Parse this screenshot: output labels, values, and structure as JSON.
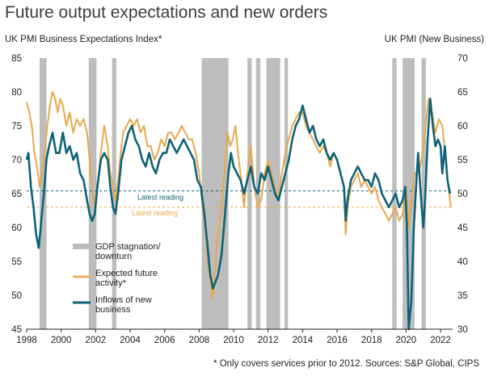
{
  "chart_data": {
    "type": "line",
    "title": "Future output expectations and new orders",
    "left_axis": {
      "label": "UK PMI Business Expectations Index*",
      "range": [
        45,
        85
      ],
      "ticks": [
        45,
        50,
        55,
        60,
        65,
        70,
        75,
        80,
        85
      ]
    },
    "right_axis": {
      "label": "UK PMI (New Business)",
      "range": [
        30,
        70
      ],
      "ticks": [
        30,
        35,
        40,
        45,
        50,
        55,
        60,
        65,
        70
      ]
    },
    "x_axis": {
      "range": [
        1998,
        2022.7
      ],
      "ticks": [
        1998,
        2000,
        2002,
        2004,
        2006,
        2008,
        2010,
        2012,
        2014,
        2016,
        2018,
        2020,
        2022
      ]
    },
    "shaded_periods": {
      "label": "GDP stagnation/ downturn",
      "periods": [
        [
          1998.75,
          1999.15
        ],
        [
          2001.6,
          2002.05
        ],
        [
          2002.95,
          2003.2
        ],
        [
          2008.15,
          2009.7
        ],
        [
          2010.8,
          2011.05
        ],
        [
          2011.3,
          2011.55
        ],
        [
          2011.9,
          2012.7
        ],
        [
          2012.95,
          2013.15
        ],
        [
          2019.2,
          2019.45
        ],
        [
          2019.8,
          2020.5
        ],
        [
          2020.9,
          2021.15
        ]
      ]
    },
    "series": [
      {
        "name": "Expected future activity*",
        "axis": "left",
        "color": "#E8A84C",
        "points": [
          [
            1998.0,
            78.5
          ],
          [
            1998.15,
            77
          ],
          [
            1998.3,
            75
          ],
          [
            1998.45,
            71
          ],
          [
            1998.6,
            69
          ],
          [
            1998.75,
            66
          ],
          [
            1998.9,
            68
          ],
          [
            1999.05,
            71
          ],
          [
            1999.2,
            75
          ],
          [
            1999.35,
            78
          ],
          [
            1999.5,
            80
          ],
          [
            1999.65,
            79
          ],
          [
            1999.8,
            77
          ],
          [
            1999.95,
            79
          ],
          [
            2000.1,
            78
          ],
          [
            2000.3,
            75
          ],
          [
            2000.5,
            77
          ],
          [
            2000.7,
            74
          ],
          [
            2000.9,
            76
          ],
          [
            2001.1,
            75
          ],
          [
            2001.3,
            76
          ],
          [
            2001.5,
            74
          ],
          [
            2001.65,
            70
          ],
          [
            2001.8,
            66
          ],
          [
            2001.95,
            63
          ],
          [
            2002.1,
            66
          ],
          [
            2002.3,
            71
          ],
          [
            2002.5,
            75
          ],
          [
            2002.7,
            72
          ],
          [
            2002.85,
            68
          ],
          [
            2003.0,
            66
          ],
          [
            2003.15,
            64
          ],
          [
            2003.3,
            67
          ],
          [
            2003.45,
            71
          ],
          [
            2003.6,
            74
          ],
          [
            2003.8,
            75
          ],
          [
            2004.0,
            76
          ],
          [
            2004.2,
            75
          ],
          [
            2004.4,
            76
          ],
          [
            2004.6,
            74
          ],
          [
            2004.8,
            75
          ],
          [
            2005.0,
            72
          ],
          [
            2005.2,
            72
          ],
          [
            2005.4,
            70
          ],
          [
            2005.6,
            71
          ],
          [
            2005.8,
            73
          ],
          [
            2006.0,
            72
          ],
          [
            2006.2,
            74
          ],
          [
            2006.4,
            74
          ],
          [
            2006.6,
            73
          ],
          [
            2006.8,
            74
          ],
          [
            2007.0,
            75
          ],
          [
            2007.2,
            74
          ],
          [
            2007.4,
            73
          ],
          [
            2007.6,
            73
          ],
          [
            2007.8,
            71
          ],
          [
            2008.0,
            68
          ],
          [
            2008.2,
            63
          ],
          [
            2008.35,
            60
          ],
          [
            2008.5,
            55
          ],
          [
            2008.65,
            52
          ],
          [
            2008.8,
            49.5
          ],
          [
            2008.95,
            55
          ],
          [
            2009.1,
            59
          ],
          [
            2009.3,
            63
          ],
          [
            2009.5,
            69
          ],
          [
            2009.65,
            74
          ],
          [
            2009.8,
            72
          ],
          [
            2009.95,
            73
          ],
          [
            2010.1,
            75
          ],
          [
            2010.3,
            70
          ],
          [
            2010.45,
            67
          ],
          [
            2010.6,
            63
          ],
          [
            2010.8,
            68
          ],
          [
            2011.0,
            72
          ],
          [
            2011.2,
            66
          ],
          [
            2011.4,
            63
          ],
          [
            2011.6,
            64
          ],
          [
            2011.8,
            68
          ],
          [
            2012.0,
            70
          ],
          [
            2012.2,
            68
          ],
          [
            2012.4,
            66
          ],
          [
            2012.6,
            64
          ],
          [
            2012.8,
            68
          ],
          [
            2013.0,
            71
          ],
          [
            2013.2,
            73
          ],
          [
            2013.4,
            75
          ],
          [
            2013.6,
            76
          ],
          [
            2013.8,
            77
          ],
          [
            2014.0,
            77
          ],
          [
            2014.2,
            75
          ],
          [
            2014.4,
            74
          ],
          [
            2014.6,
            73
          ],
          [
            2014.8,
            72
          ],
          [
            2015.0,
            71
          ],
          [
            2015.2,
            72
          ],
          [
            2015.4,
            71
          ],
          [
            2015.6,
            69
          ],
          [
            2015.8,
            71
          ],
          [
            2016.0,
            70
          ],
          [
            2016.2,
            68
          ],
          [
            2016.4,
            66
          ],
          [
            2016.5,
            59
          ],
          [
            2016.6,
            63
          ],
          [
            2016.8,
            66
          ],
          [
            2017.0,
            67
          ],
          [
            2017.2,
            68
          ],
          [
            2017.4,
            66
          ],
          [
            2017.6,
            67
          ],
          [
            2017.8,
            66
          ],
          [
            2018.0,
            65
          ],
          [
            2018.2,
            66
          ],
          [
            2018.4,
            64
          ],
          [
            2018.6,
            63
          ],
          [
            2018.8,
            62
          ],
          [
            2019.0,
            61
          ],
          [
            2019.2,
            62
          ],
          [
            2019.4,
            63
          ],
          [
            2019.6,
            61
          ],
          [
            2019.8,
            62
          ],
          [
            2020.0,
            66
          ],
          [
            2020.15,
            60
          ],
          [
            2020.3,
            64
          ],
          [
            2020.5,
            68
          ],
          [
            2020.7,
            68
          ],
          [
            2020.9,
            70
          ],
          [
            2021.1,
            74
          ],
          [
            2021.3,
            79
          ],
          [
            2021.5,
            77
          ],
          [
            2021.7,
            74
          ],
          [
            2021.9,
            76
          ],
          [
            2022.1,
            75
          ],
          [
            2022.3,
            70
          ],
          [
            2022.45,
            66
          ],
          [
            2022.6,
            63
          ]
        ]
      },
      {
        "name": "Inflows of new business",
        "axis": "right",
        "color": "#0E6377",
        "points": [
          [
            1998.0,
            55
          ],
          [
            1998.1,
            56
          ],
          [
            1998.25,
            51
          ],
          [
            1998.4,
            48
          ],
          [
            1998.55,
            44
          ],
          [
            1998.7,
            42
          ],
          [
            1998.85,
            46
          ],
          [
            1999.0,
            50
          ],
          [
            1999.15,
            55
          ],
          [
            1999.3,
            57
          ],
          [
            1999.5,
            59
          ],
          [
            1999.7,
            56
          ],
          [
            1999.9,
            56
          ],
          [
            2000.1,
            59
          ],
          [
            2000.3,
            56
          ],
          [
            2000.5,
            57
          ],
          [
            2000.7,
            55
          ],
          [
            2000.9,
            56
          ],
          [
            2001.1,
            53
          ],
          [
            2001.3,
            52
          ],
          [
            2001.5,
            49
          ],
          [
            2001.65,
            47
          ],
          [
            2001.8,
            46
          ],
          [
            2001.95,
            47
          ],
          [
            2002.1,
            51
          ],
          [
            2002.3,
            55
          ],
          [
            2002.5,
            56
          ],
          [
            2002.7,
            55
          ],
          [
            2002.85,
            51
          ],
          [
            2003.0,
            48
          ],
          [
            2003.15,
            47
          ],
          [
            2003.3,
            50
          ],
          [
            2003.5,
            55
          ],
          [
            2003.7,
            57
          ],
          [
            2003.9,
            59
          ],
          [
            2004.1,
            60
          ],
          [
            2004.3,
            58
          ],
          [
            2004.5,
            57
          ],
          [
            2004.7,
            55
          ],
          [
            2004.9,
            54
          ],
          [
            2005.1,
            56
          ],
          [
            2005.3,
            54
          ],
          [
            2005.5,
            53
          ],
          [
            2005.7,
            55
          ],
          [
            2005.9,
            56
          ],
          [
            2006.1,
            56
          ],
          [
            2006.3,
            58
          ],
          [
            2006.5,
            57
          ],
          [
            2006.7,
            56
          ],
          [
            2006.9,
            57
          ],
          [
            2007.1,
            58
          ],
          [
            2007.3,
            57
          ],
          [
            2007.5,
            56
          ],
          [
            2007.7,
            55
          ],
          [
            2007.9,
            52
          ],
          [
            2008.1,
            51
          ],
          [
            2008.3,
            47
          ],
          [
            2008.5,
            42
          ],
          [
            2008.65,
            38
          ],
          [
            2008.8,
            36
          ],
          [
            2008.95,
            37
          ],
          [
            2009.1,
            38
          ],
          [
            2009.3,
            41
          ],
          [
            2009.5,
            47
          ],
          [
            2009.7,
            53
          ],
          [
            2009.85,
            56
          ],
          [
            2010.0,
            54
          ],
          [
            2010.2,
            53
          ],
          [
            2010.4,
            52
          ],
          [
            2010.6,
            50
          ],
          [
            2010.8,
            52
          ],
          [
            2011.0,
            54
          ],
          [
            2011.2,
            51
          ],
          [
            2011.4,
            50
          ],
          [
            2011.6,
            53
          ],
          [
            2011.8,
            52
          ],
          [
            2012.0,
            54
          ],
          [
            2012.2,
            52
          ],
          [
            2012.4,
            50
          ],
          [
            2012.6,
            49
          ],
          [
            2012.8,
            51
          ],
          [
            2013.0,
            53
          ],
          [
            2013.2,
            55
          ],
          [
            2013.4,
            58
          ],
          [
            2013.6,
            60
          ],
          [
            2013.8,
            61
          ],
          [
            2014.0,
            63
          ],
          [
            2014.2,
            61
          ],
          [
            2014.4,
            59
          ],
          [
            2014.6,
            60
          ],
          [
            2014.8,
            58
          ],
          [
            2015.0,
            57
          ],
          [
            2015.2,
            58
          ],
          [
            2015.4,
            56
          ],
          [
            2015.6,
            55
          ],
          [
            2015.8,
            56
          ],
          [
            2016.0,
            55
          ],
          [
            2016.2,
            53
          ],
          [
            2016.4,
            51
          ],
          [
            2016.5,
            46
          ],
          [
            2016.6,
            49
          ],
          [
            2016.8,
            52
          ],
          [
            2017.0,
            53
          ],
          [
            2017.2,
            54
          ],
          [
            2017.4,
            53
          ],
          [
            2017.6,
            52
          ],
          [
            2017.8,
            52
          ],
          [
            2018.0,
            51
          ],
          [
            2018.2,
            53
          ],
          [
            2018.4,
            52
          ],
          [
            2018.6,
            50
          ],
          [
            2018.8,
            49
          ],
          [
            2019.0,
            48
          ],
          [
            2019.2,
            49
          ],
          [
            2019.4,
            50
          ],
          [
            2019.6,
            48
          ],
          [
            2019.8,
            49
          ],
          [
            2019.95,
            51
          ],
          [
            2020.05,
            45
          ],
          [
            2020.15,
            30
          ],
          [
            2020.3,
            34
          ],
          [
            2020.45,
            45
          ],
          [
            2020.6,
            52
          ],
          [
            2020.7,
            56
          ],
          [
            2020.85,
            50
          ],
          [
            2021.0,
            45
          ],
          [
            2021.1,
            49
          ],
          [
            2021.25,
            58
          ],
          [
            2021.4,
            64
          ],
          [
            2021.55,
            60
          ],
          [
            2021.7,
            57
          ],
          [
            2021.85,
            58
          ],
          [
            2022.0,
            57
          ],
          [
            2022.1,
            53
          ],
          [
            2022.25,
            57
          ],
          [
            2022.4,
            52
          ],
          [
            2022.55,
            50
          ]
        ]
      }
    ],
    "annotations": [
      {
        "text": "Latest reading",
        "series": "Inflows of new business",
        "value_right": 50.4,
        "color": "#0E6377"
      },
      {
        "text": "Latest reading",
        "series": "Expected future activity*",
        "value_left": 63,
        "color": "#E8A84C"
      }
    ],
    "legend": {
      "placement": "lower-left"
    },
    "footnote": "* Only covers services prior to 2012. Sources: S&P Global, CIPS"
  }
}
